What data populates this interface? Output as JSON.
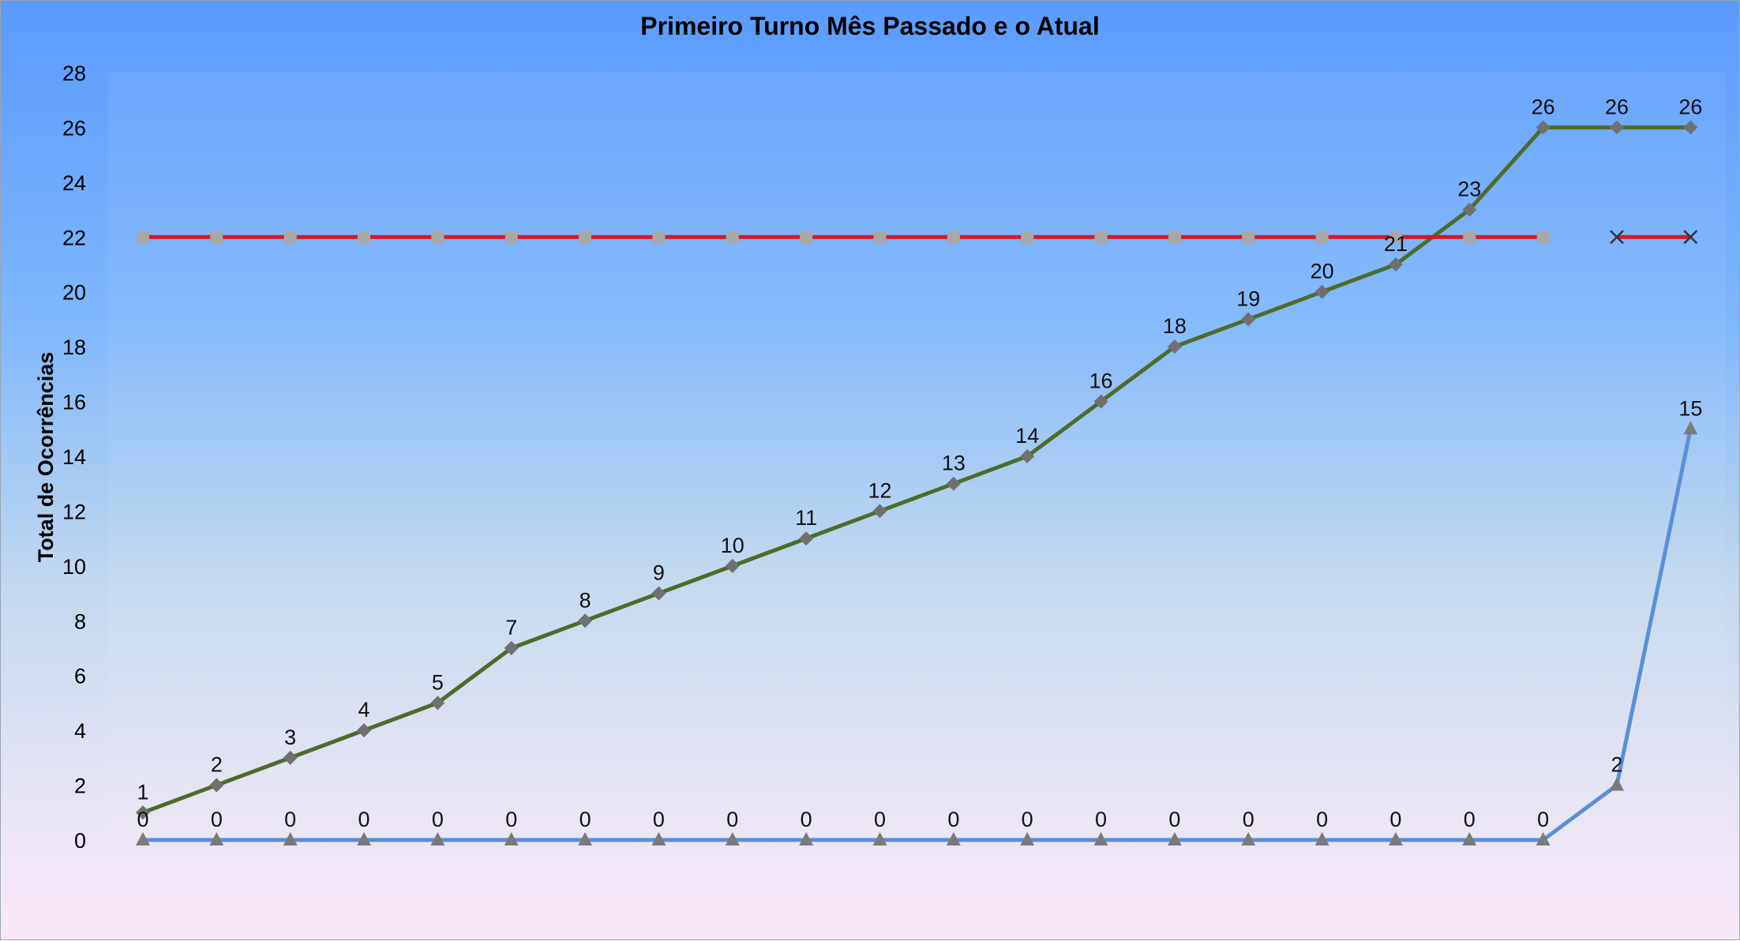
{
  "chart_data": {
    "type": "line",
    "title": "Primeiro Turno Mês Passado e o Atual",
    "ylabel": "Total de Ocorrências",
    "xlabel": "",
    "ylim": [
      0,
      28
    ],
    "yticks": [
      0,
      2,
      4,
      6,
      8,
      10,
      12,
      14,
      16,
      18,
      20,
      22,
      24,
      26,
      28
    ],
    "x": [
      1,
      2,
      3,
      4,
      5,
      6,
      7,
      8,
      9,
      10,
      11,
      12,
      13,
      14,
      15,
      16,
      17,
      18,
      19,
      20,
      21,
      22
    ],
    "grid": false,
    "legend": "none",
    "series": [
      {
        "id": "green",
        "color": "#4e6b2a",
        "marker": "diamond",
        "marker_color": "#707070",
        "values": [
          1,
          2,
          3,
          4,
          5,
          7,
          8,
          9,
          10,
          11,
          12,
          13,
          14,
          16,
          18,
          19,
          20,
          21,
          23,
          26,
          26,
          26
        ],
        "labels": true
      },
      {
        "id": "red",
        "color": "#e0141e",
        "marker": "square",
        "marker_color": "#a8a8a8",
        "values": [
          22,
          22,
          22,
          22,
          22,
          22,
          22,
          22,
          22,
          22,
          22,
          22,
          22,
          22,
          22,
          22,
          22,
          22,
          22,
          22,
          null,
          null
        ],
        "labels": false
      },
      {
        "id": "red-cont",
        "color": "#e0141e",
        "marker": "x",
        "marker_color": "#333333",
        "values": [
          null,
          null,
          null,
          null,
          null,
          null,
          null,
          null,
          null,
          null,
          null,
          null,
          null,
          null,
          null,
          null,
          null,
          null,
          null,
          null,
          22,
          22
        ],
        "labels": false
      },
      {
        "id": "blue",
        "color": "#5a8fd8",
        "marker": "triangle",
        "marker_color": "#7a7a7a",
        "values": [
          0,
          0,
          0,
          0,
          0,
          0,
          0,
          0,
          0,
          0,
          0,
          0,
          0,
          0,
          0,
          0,
          0,
          0,
          0,
          0,
          2,
          15
        ],
        "labels": true
      }
    ]
  }
}
